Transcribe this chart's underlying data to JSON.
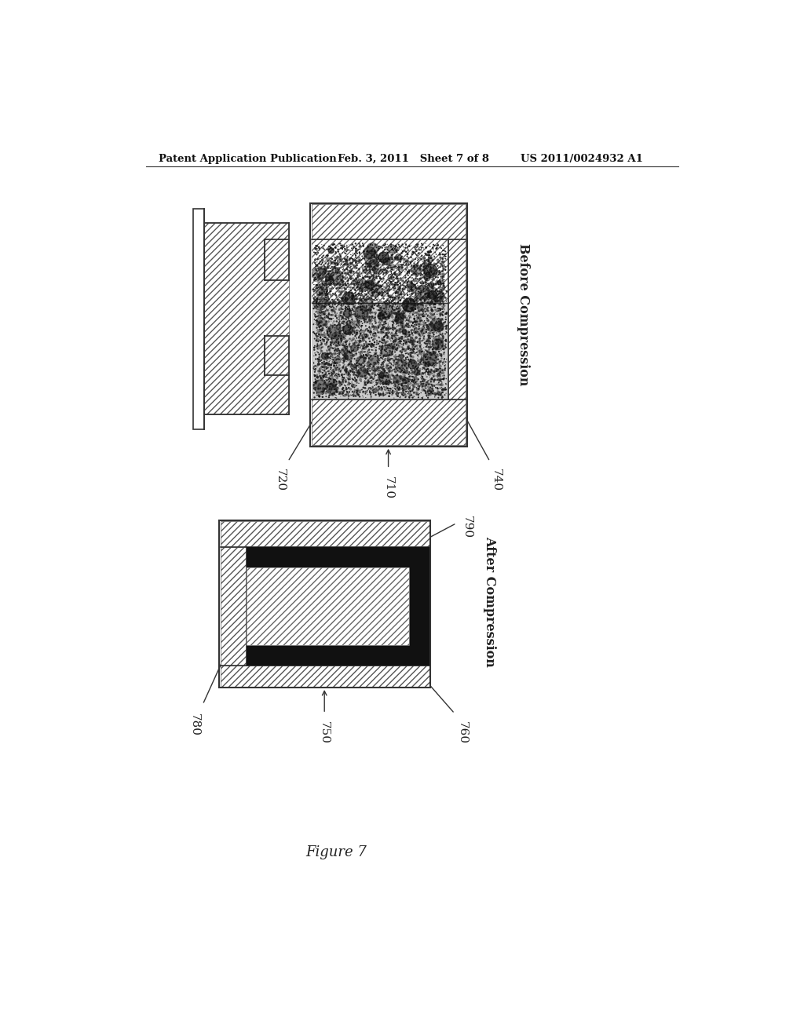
{
  "bg_color": "#ffffff",
  "header_left": "Patent Application Publication",
  "header_mid": "Feb. 3, 2011   Sheet 7 of 8",
  "header_right": "US 2011/0024932 A1",
  "figure_label": "Figure 7",
  "top_diagram": {
    "label_710": "710",
    "label_720": "720",
    "label_740": "740",
    "label_before": "Before Compression"
  },
  "bottom_diagram": {
    "label_750": "750",
    "label_760": "760",
    "label_780": "780",
    "label_790": "790",
    "label_after": "After Compression"
  }
}
